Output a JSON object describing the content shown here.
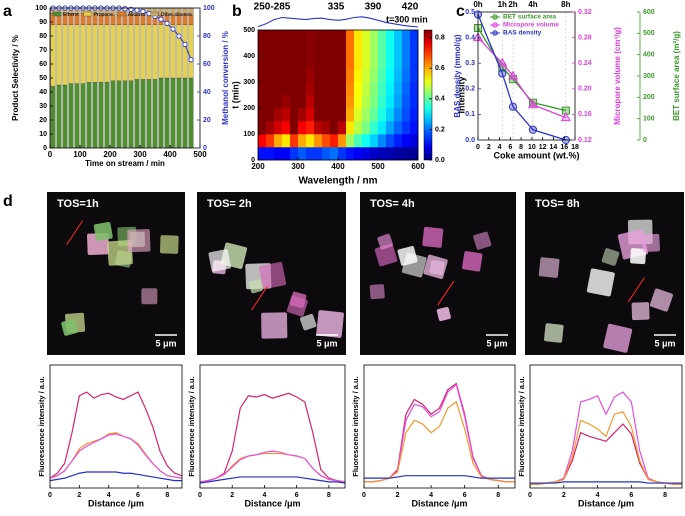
{
  "panel_labels": [
    "a",
    "b",
    "c",
    "d"
  ],
  "chart_data": [
    {
      "type": "stacked-bar-line",
      "xlabel": "Time on stream / min",
      "ylabel": "Product Selectivity / %",
      "y2label": "Methanol conversion / %",
      "x": [
        10,
        30,
        50,
        70,
        90,
        110,
        130,
        150,
        170,
        190,
        210,
        230,
        250,
        270,
        290,
        310,
        330,
        350,
        370,
        390,
        410,
        430,
        450,
        470
      ],
      "xlim": [
        0,
        500
      ],
      "xticks": [
        0,
        100,
        200,
        300,
        400,
        500
      ],
      "ylim": [
        0,
        100
      ],
      "yticks": [
        0,
        10,
        20,
        30,
        40,
        50,
        60,
        70,
        80,
        90,
        100
      ],
      "y2lim": [
        0,
        100
      ],
      "y2ticks": [
        0,
        20,
        40,
        60,
        80,
        100
      ],
      "legend": "top",
      "series": [
        {
          "name": "Ethene",
          "color": "#4e8f2e",
          "values": [
            44,
            45,
            45,
            46,
            46,
            46,
            47,
            47,
            47,
            47,
            48,
            48,
            48,
            48,
            49,
            49,
            49,
            49,
            50,
            50,
            50,
            50,
            50,
            50
          ]
        },
        {
          "name": "Propene",
          "color": "#e6d24a",
          "values": [
            44,
            43,
            43,
            42,
            42,
            42,
            41,
            41,
            41,
            41,
            40,
            40,
            40,
            40,
            39,
            39,
            39,
            39,
            38,
            38,
            38,
            38,
            38,
            38
          ]
        },
        {
          "name": "Alkanes",
          "color": "#e07b2a",
          "values": [
            8,
            8,
            8,
            8,
            8,
            8,
            8,
            8,
            7,
            7,
            7,
            7,
            7,
            7,
            7,
            7,
            7,
            7,
            7,
            7,
            7,
            7,
            7,
            7
          ]
        },
        {
          "name": "Other alkenes",
          "color": "#c9a86a",
          "values": [
            4,
            4,
            4,
            4,
            4,
            4,
            4,
            4,
            5,
            5,
            5,
            5,
            5,
            5,
            5,
            5,
            5,
            5,
            5,
            5,
            5,
            5,
            5,
            5
          ]
        },
        {
          "type": "line",
          "axis": "y2",
          "color": "#2b35c8",
          "values": [
            100,
            100,
            100,
            100,
            100,
            100,
            100,
            100,
            100,
            100,
            100,
            100,
            99.5,
            99,
            98.5,
            97.5,
            96,
            94,
            92,
            89,
            85,
            80,
            74,
            63
          ]
        }
      ]
    },
    {
      "type": "heatmap",
      "xlabel": "Wavelength / nm",
      "ylabel": "t (min)",
      "zlabel": "Intensity",
      "x": [
        210,
        230,
        250,
        270,
        290,
        310,
        330,
        350,
        370,
        390,
        410,
        430,
        450,
        470,
        490,
        510,
        530,
        550,
        570,
        590
      ],
      "y": [
        25,
        75,
        125,
        175,
        225,
        275,
        325,
        375,
        425,
        475
      ],
      "z": [
        [
          0.12,
          0.12,
          0.1,
          0.1,
          0.15,
          0.18,
          0.15,
          0.15,
          0.18,
          0.2,
          0.15,
          0.12,
          0.1,
          0.08,
          0.06,
          0.05,
          0.04,
          0.03,
          0.02,
          0.02
        ],
        [
          0.75,
          0.7,
          0.6,
          0.55,
          0.7,
          0.6,
          0.55,
          0.62,
          0.68,
          0.72,
          0.62,
          0.45,
          0.38,
          0.33,
          0.28,
          0.22,
          0.17,
          0.13,
          0.1,
          0.08
        ],
        [
          0.85,
          0.82,
          0.78,
          0.75,
          0.85,
          0.75,
          0.72,
          0.8,
          0.82,
          0.85,
          0.8,
          0.55,
          0.47,
          0.42,
          0.36,
          0.3,
          0.24,
          0.19,
          0.15,
          0.12
        ],
        [
          0.85,
          0.85,
          0.82,
          0.8,
          0.85,
          0.82,
          0.78,
          0.85,
          0.85,
          0.85,
          0.85,
          0.6,
          0.5,
          0.45,
          0.4,
          0.34,
          0.28,
          0.22,
          0.17,
          0.13
        ],
        [
          0.85,
          0.85,
          0.85,
          0.83,
          0.85,
          0.85,
          0.8,
          0.85,
          0.85,
          0.85,
          0.85,
          0.62,
          0.52,
          0.47,
          0.42,
          0.36,
          0.3,
          0.24,
          0.18,
          0.14
        ],
        [
          0.85,
          0.85,
          0.85,
          0.85,
          0.85,
          0.85,
          0.82,
          0.85,
          0.85,
          0.85,
          0.85,
          0.63,
          0.53,
          0.48,
          0.43,
          0.37,
          0.31,
          0.25,
          0.19,
          0.14
        ],
        [
          0.85,
          0.85,
          0.85,
          0.85,
          0.85,
          0.85,
          0.83,
          0.85,
          0.85,
          0.85,
          0.85,
          0.64,
          0.54,
          0.49,
          0.44,
          0.38,
          0.32,
          0.26,
          0.2,
          0.15
        ],
        [
          0.85,
          0.85,
          0.85,
          0.85,
          0.85,
          0.85,
          0.84,
          0.85,
          0.85,
          0.85,
          0.85,
          0.65,
          0.55,
          0.5,
          0.45,
          0.39,
          0.33,
          0.27,
          0.21,
          0.15
        ],
        [
          0.85,
          0.85,
          0.85,
          0.85,
          0.85,
          0.85,
          0.84,
          0.85,
          0.85,
          0.85,
          0.85,
          0.65,
          0.55,
          0.5,
          0.45,
          0.39,
          0.33,
          0.27,
          0.21,
          0.15
        ],
        [
          0.85,
          0.85,
          0.85,
          0.85,
          0.85,
          0.85,
          0.84,
          0.85,
          0.85,
          0.85,
          0.85,
          0.65,
          0.55,
          0.5,
          0.45,
          0.39,
          0.33,
          0.27,
          0.21,
          0.15
        ]
      ],
      "xlim": [
        200,
        600
      ],
      "xticks": [
        200,
        300,
        400,
        500,
        600
      ],
      "ylim": [
        0,
        500
      ],
      "yticks": [
        0,
        100,
        200,
        300,
        400,
        500
      ],
      "zlim": [
        0,
        0.85
      ],
      "zticks": [
        {
          "value": 0,
          "label": "0.0"
        },
        0.2,
        0.4,
        0.6,
        0.8
      ],
      "peak_labels": [
        "250-285",
        "335",
        "390",
        "420"
      ],
      "curve_label": "t=300 min",
      "spectrum": {
        "color": "#2b35c8",
        "x": [
          200,
          220,
          240,
          260,
          280,
          300,
          320,
          340,
          360,
          380,
          400,
          420,
          440,
          460,
          480,
          500,
          520,
          540,
          560,
          580,
          600
        ],
        "values": [
          0.1,
          0.3,
          0.6,
          0.75,
          0.7,
          0.65,
          0.6,
          0.68,
          0.7,
          0.6,
          0.55,
          0.62,
          0.75,
          0.8,
          0.7,
          0.55,
          0.4,
          0.3,
          0.2,
          0.12,
          0.08
        ]
      }
    },
    {
      "type": "multi-axis-line",
      "xlabel": "Coke amount (wt.%)",
      "ylabel": "BAS density (mmol/g)",
      "y2label": "Micropore volume (cm³/g)",
      "y3label": "BET surface area (m²/g)",
      "x": [
        0,
        4.5,
        6.5,
        10.2,
        16.3
      ],
      "top_labels": [
        "0h",
        "1h",
        "2h",
        "4h",
        "8h"
      ],
      "xlim": [
        0,
        18
      ],
      "xticks": [
        0,
        2,
        4,
        6,
        8,
        10,
        12,
        14,
        16,
        18
      ],
      "ylim": [
        0,
        0.5
      ],
      "yticks": [
        {
          "value": 0,
          "label": "0.0"
        },
        0.1,
        0.2,
        0.3,
        0.4,
        0.5
      ],
      "y2lim": [
        0.12,
        0.32
      ],
      "y2ticks": [
        0.12,
        0.16,
        {
          "value": 0.2,
          "label": "0.20"
        },
        0.24,
        0.28,
        0.32
      ],
      "y3lim": [
        0,
        600
      ],
      "y3ticks": [
        0,
        100,
        200,
        300,
        400,
        500,
        600
      ],
      "legend": "upper right",
      "series": [
        {
          "name": "BET surface area",
          "color": "#3a9a2a",
          "marker": "square",
          "axis": "y3",
          "values": [
            525,
            340,
            285,
            175,
            138
          ]
        },
        {
          "name": "Micropore volume",
          "color": "#e040e0",
          "marker": "triangle",
          "axis": "y2",
          "values": [
            0.28,
            0.24,
            0.22,
            0.175,
            0.155
          ]
        },
        {
          "name": "BAS density",
          "color": "#2b35c8",
          "marker": "circle",
          "axis": "y",
          "values": [
            0.49,
            0.26,
            0.13,
            0.04,
            0.0
          ]
        }
      ]
    },
    {
      "type": "line",
      "xlabel": "Distance /μm",
      "ylabel": "Fluorescence intensity / a.u.",
      "x": [
        0,
        0.5,
        1,
        1.5,
        2,
        2.5,
        3,
        3.5,
        4,
        4.5,
        5,
        5.5,
        6,
        6.5,
        7,
        7.5,
        8,
        8.5,
        9
      ],
      "xlim": [
        0,
        9
      ],
      "xticks": [
        0,
        2,
        4,
        6,
        8
      ],
      "ylim": [
        0,
        100
      ],
      "series": [
        {
          "color": "#d6246e",
          "values": [
            8,
            12,
            20,
            45,
            75,
            78,
            73,
            76,
            77,
            74,
            72,
            75,
            78,
            65,
            50,
            30,
            18,
            12,
            10
          ]
        },
        {
          "color": "#f39a2b",
          "values": [
            8,
            10,
            14,
            22,
            32,
            36,
            38,
            40,
            44,
            45,
            42,
            40,
            36,
            28,
            20,
            14,
            10,
            9,
            8
          ]
        },
        {
          "color": "#e84fe0",
          "values": [
            8,
            10,
            14,
            22,
            30,
            34,
            37,
            40,
            43,
            44,
            42,
            40,
            35,
            27,
            20,
            14,
            10,
            9,
            8
          ]
        },
        {
          "color": "#2030c0",
          "values": [
            6,
            7,
            8,
            10,
            12,
            13,
            13,
            13,
            13,
            13,
            12,
            12,
            11,
            10,
            9,
            8,
            7,
            6,
            6
          ]
        }
      ]
    },
    {
      "type": "line",
      "xlabel": "Distance /μm",
      "ylabel": "Fluorescence intensity / a.u.",
      "x": [
        0,
        0.5,
        1,
        1.5,
        2,
        2.5,
        3,
        3.5,
        4,
        4.5,
        5,
        5.5,
        6,
        6.5,
        7,
        7.5,
        8,
        8.5,
        9
      ],
      "xlim": [
        0,
        9
      ],
      "xticks": [
        0,
        2,
        4,
        6,
        8
      ],
      "ylim": [
        0,
        100
      ],
      "series": [
        {
          "color": "#d6246e",
          "values": [
            5,
            6,
            8,
            12,
            30,
            65,
            75,
            74,
            76,
            73,
            75,
            77,
            74,
            70,
            45,
            15,
            8,
            6,
            5
          ]
        },
        {
          "color": "#f39a2b",
          "values": [
            5,
            6,
            8,
            11,
            18,
            24,
            26,
            27,
            28,
            28,
            28,
            27,
            26,
            24,
            16,
            10,
            7,
            6,
            5
          ]
        },
        {
          "color": "#e84fe0",
          "values": [
            5,
            6,
            8,
            11,
            17,
            23,
            26,
            27,
            29,
            30,
            29,
            27,
            26,
            24,
            16,
            10,
            7,
            6,
            5
          ]
        },
        {
          "color": "#2030c0",
          "values": [
            4,
            5,
            6,
            7,
            8,
            9,
            9,
            9,
            9,
            9,
            9,
            9,
            9,
            8,
            7,
            6,
            5,
            5,
            4
          ]
        }
      ]
    },
    {
      "type": "line",
      "xlabel": "Distance /μm",
      "ylabel": "Fluorescence intensity / a.u.",
      "x": [
        0,
        0.5,
        1,
        1.5,
        2,
        2.5,
        3,
        3.5,
        4,
        4.5,
        5,
        5.5,
        6,
        6.5,
        7,
        7.5,
        8,
        8.5,
        9
      ],
      "xlim": [
        0,
        9
      ],
      "xticks": [
        0,
        2,
        4,
        6,
        8
      ],
      "ylim": [
        0,
        100
      ],
      "series": [
        {
          "color": "#d6246e",
          "values": [
            5,
            5,
            6,
            8,
            15,
            60,
            72,
            68,
            60,
            65,
            80,
            85,
            60,
            25,
            10,
            7,
            6,
            5,
            5
          ]
        },
        {
          "color": "#e84fe0",
          "values": [
            5,
            5,
            6,
            8,
            14,
            55,
            68,
            66,
            58,
            62,
            78,
            84,
            58,
            24,
            10,
            7,
            6,
            5,
            5
          ]
        },
        {
          "color": "#f39a2b",
          "values": [
            5,
            5,
            6,
            8,
            13,
            45,
            55,
            52,
            45,
            50,
            65,
            70,
            48,
            20,
            9,
            7,
            6,
            5,
            5
          ]
        },
        {
          "color": "#2030c0",
          "values": [
            8,
            8,
            8,
            8,
            9,
            10,
            10,
            10,
            10,
            10,
            10,
            10,
            10,
            9,
            8,
            8,
            8,
            8,
            8
          ]
        }
      ]
    },
    {
      "type": "line",
      "xlabel": "Distance /μm",
      "ylabel": "Fluorescence intensity / a.u.",
      "x": [
        0,
        0.5,
        1,
        1.5,
        2,
        2.5,
        3,
        3.5,
        4,
        4.5,
        5,
        5.5,
        6,
        6.5,
        7,
        7.5,
        8,
        8.5,
        9
      ],
      "xlim": [
        0,
        9
      ],
      "xticks": [
        0,
        2,
        4,
        6,
        8
      ],
      "ylim": [
        0,
        100
      ],
      "series": [
        {
          "color": "#e84fe0",
          "values": [
            3,
            3,
            4,
            5,
            8,
            30,
            70,
            72,
            75,
            60,
            74,
            78,
            70,
            30,
            8,
            5,
            4,
            3,
            3
          ]
        },
        {
          "color": "#d6246e",
          "values": [
            3,
            3,
            4,
            5,
            7,
            22,
            45,
            42,
            40,
            38,
            45,
            52,
            44,
            20,
            7,
            5,
            4,
            3,
            3
          ]
        },
        {
          "color": "#f39a2b",
          "values": [
            3,
            3,
            4,
            5,
            7,
            25,
            55,
            52,
            48,
            42,
            60,
            62,
            50,
            22,
            7,
            5,
            4,
            3,
            3
          ]
        },
        {
          "color": "#2030c0",
          "values": [
            4,
            4,
            4,
            4,
            5,
            5,
            5,
            5,
            5,
            5,
            5,
            5,
            5,
            5,
            4,
            4,
            4,
            4,
            4
          ]
        }
      ]
    }
  ],
  "images": [
    {
      "label": "TOS=1h",
      "scale_bar": "5 μm"
    },
    {
      "label": "TOS= 2h",
      "scale_bar": "5 μm"
    },
    {
      "label": "TOS= 4h",
      "scale_bar": "5 μm"
    },
    {
      "label": "TOS= 8h",
      "scale_bar": "5 μm"
    }
  ]
}
